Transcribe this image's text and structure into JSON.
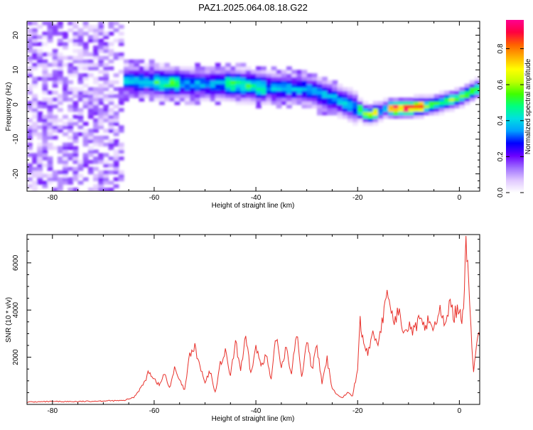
{
  "title": "PAZ1.2025.064.08.18.G22",
  "chart_data": [
    {
      "type": "heatmap",
      "xlabel": "Height of straight line (km)",
      "ylabel": "Frequency (Hz)",
      "xlim": [
        -85,
        4
      ],
      "ylim": [
        -25,
        24
      ],
      "xticks": [
        -80,
        -60,
        -40,
        -20,
        0
      ],
      "yticks": [
        -20,
        -10,
        0,
        10,
        20
      ],
      "colorbar": {
        "label": "Normalized spectral amplitude",
        "range": [
          0,
          0.96
        ],
        "ticks": [
          "0.0",
          "0.2",
          "0.4",
          "0.6",
          "0.8"
        ],
        "colors": [
          "#ffffff",
          "#e0c8ff",
          "#a070ff",
          "#6a00ff",
          "#0000ff",
          "#00a0ff",
          "#00e0e0",
          "#00ff80",
          "#40ff00",
          "#c0ff00",
          "#ffff00",
          "#ffb000",
          "#ff6000",
          "#ff0040",
          "#ff0090"
        ]
      },
      "ridge": [
        {
          "x": -66,
          "y": 7
        },
        {
          "x": -60,
          "y": 6.5
        },
        {
          "x": -52,
          "y": 6
        },
        {
          "x": -45,
          "y": 6
        },
        {
          "x": -38,
          "y": 5
        },
        {
          "x": -30,
          "y": 4.5
        },
        {
          "x": -25,
          "y": 2
        },
        {
          "x": -20,
          "y": -1
        },
        {
          "x": -18,
          "y": -3
        },
        {
          "x": -14,
          "y": -1
        },
        {
          "x": -10,
          "y": -1
        },
        {
          "x": -5,
          "y": 0
        },
        {
          "x": 0,
          "y": 2
        },
        {
          "x": 4,
          "y": 5
        }
      ],
      "noise_region_x": [
        -85,
        -66
      ]
    },
    {
      "type": "line",
      "xlabel": "Height of straight line (km)",
      "ylabel": "SNR (10 * v/v)",
      "xlim": [
        -85,
        4
      ],
      "ylim": [
        0,
        7200
      ],
      "xticks": [
        -80,
        -60,
        -40,
        -20,
        0
      ],
      "yticks": [
        2000,
        4000,
        6000
      ],
      "series": [
        {
          "color": "#e8302a",
          "points": [
            [
              -85,
              100
            ],
            [
              -80,
              120
            ],
            [
              -75,
              120
            ],
            [
              -70,
              150
            ],
            [
              -66,
              160
            ],
            [
              -64,
              300
            ],
            [
              -62,
              900
            ],
            [
              -61,
              1400
            ],
            [
              -60,
              1100
            ],
            [
              -59,
              800
            ],
            [
              -58,
              1300
            ],
            [
              -57,
              700
            ],
            [
              -56,
              1500
            ],
            [
              -55,
              1000
            ],
            [
              -54,
              600
            ],
            [
              -53,
              2100
            ],
            [
              -52,
              2400
            ],
            [
              -51,
              1600
            ],
            [
              -50,
              900
            ],
            [
              -49,
              1400
            ],
            [
              -48,
              500
            ],
            [
              -47,
              1700
            ],
            [
              -46,
              2200
            ],
            [
              -45,
              1200
            ],
            [
              -44,
              2600
            ],
            [
              -43,
              1500
            ],
            [
              -42,
              2800
            ],
            [
              -41,
              1300
            ],
            [
              -40,
              2400
            ],
            [
              -39,
              1700
            ],
            [
              -38,
              2100
            ],
            [
              -37,
              1000
            ],
            [
              -36,
              2900
            ],
            [
              -35,
              1600
            ],
            [
              -34,
              2500
            ],
            [
              -33,
              1200
            ],
            [
              -32,
              3100
            ],
            [
              -31,
              1100
            ],
            [
              -30,
              2800
            ],
            [
              -29,
              1500
            ],
            [
              -28,
              2400
            ],
            [
              -27,
              900
            ],
            [
              -26,
              1900
            ],
            [
              -25,
              700
            ],
            [
              -24,
              400
            ],
            [
              -23,
              300
            ],
            [
              -22,
              500
            ],
            [
              -21,
              350
            ],
            [
              -20,
              1500
            ],
            [
              -19.5,
              3600
            ],
            [
              -19,
              2700
            ],
            [
              -18,
              2200
            ],
            [
              -17,
              3000
            ],
            [
              -16,
              2600
            ],
            [
              -15,
              3700
            ],
            [
              -14,
              4700
            ],
            [
              -13,
              3500
            ],
            [
              -12,
              3900
            ],
            [
              -11,
              3300
            ],
            [
              -10,
              3400
            ],
            [
              -9,
              3100
            ],
            [
              -8,
              3500
            ],
            [
              -7,
              3300
            ],
            [
              -6,
              3600
            ],
            [
              -5,
              3200
            ],
            [
              -4,
              4000
            ],
            [
              -3,
              3400
            ],
            [
              -2,
              4200
            ],
            [
              -1,
              3800
            ],
            [
              0,
              4100
            ],
            [
              0.5,
              3700
            ],
            [
              1,
              4600
            ],
            [
              1.3,
              7100
            ],
            [
              1.8,
              5500
            ],
            [
              2.3,
              3000
            ],
            [
              2.8,
              1300
            ],
            [
              3.2,
              2300
            ],
            [
              3.6,
              2800
            ],
            [
              4,
              2900
            ]
          ]
        }
      ]
    }
  ]
}
